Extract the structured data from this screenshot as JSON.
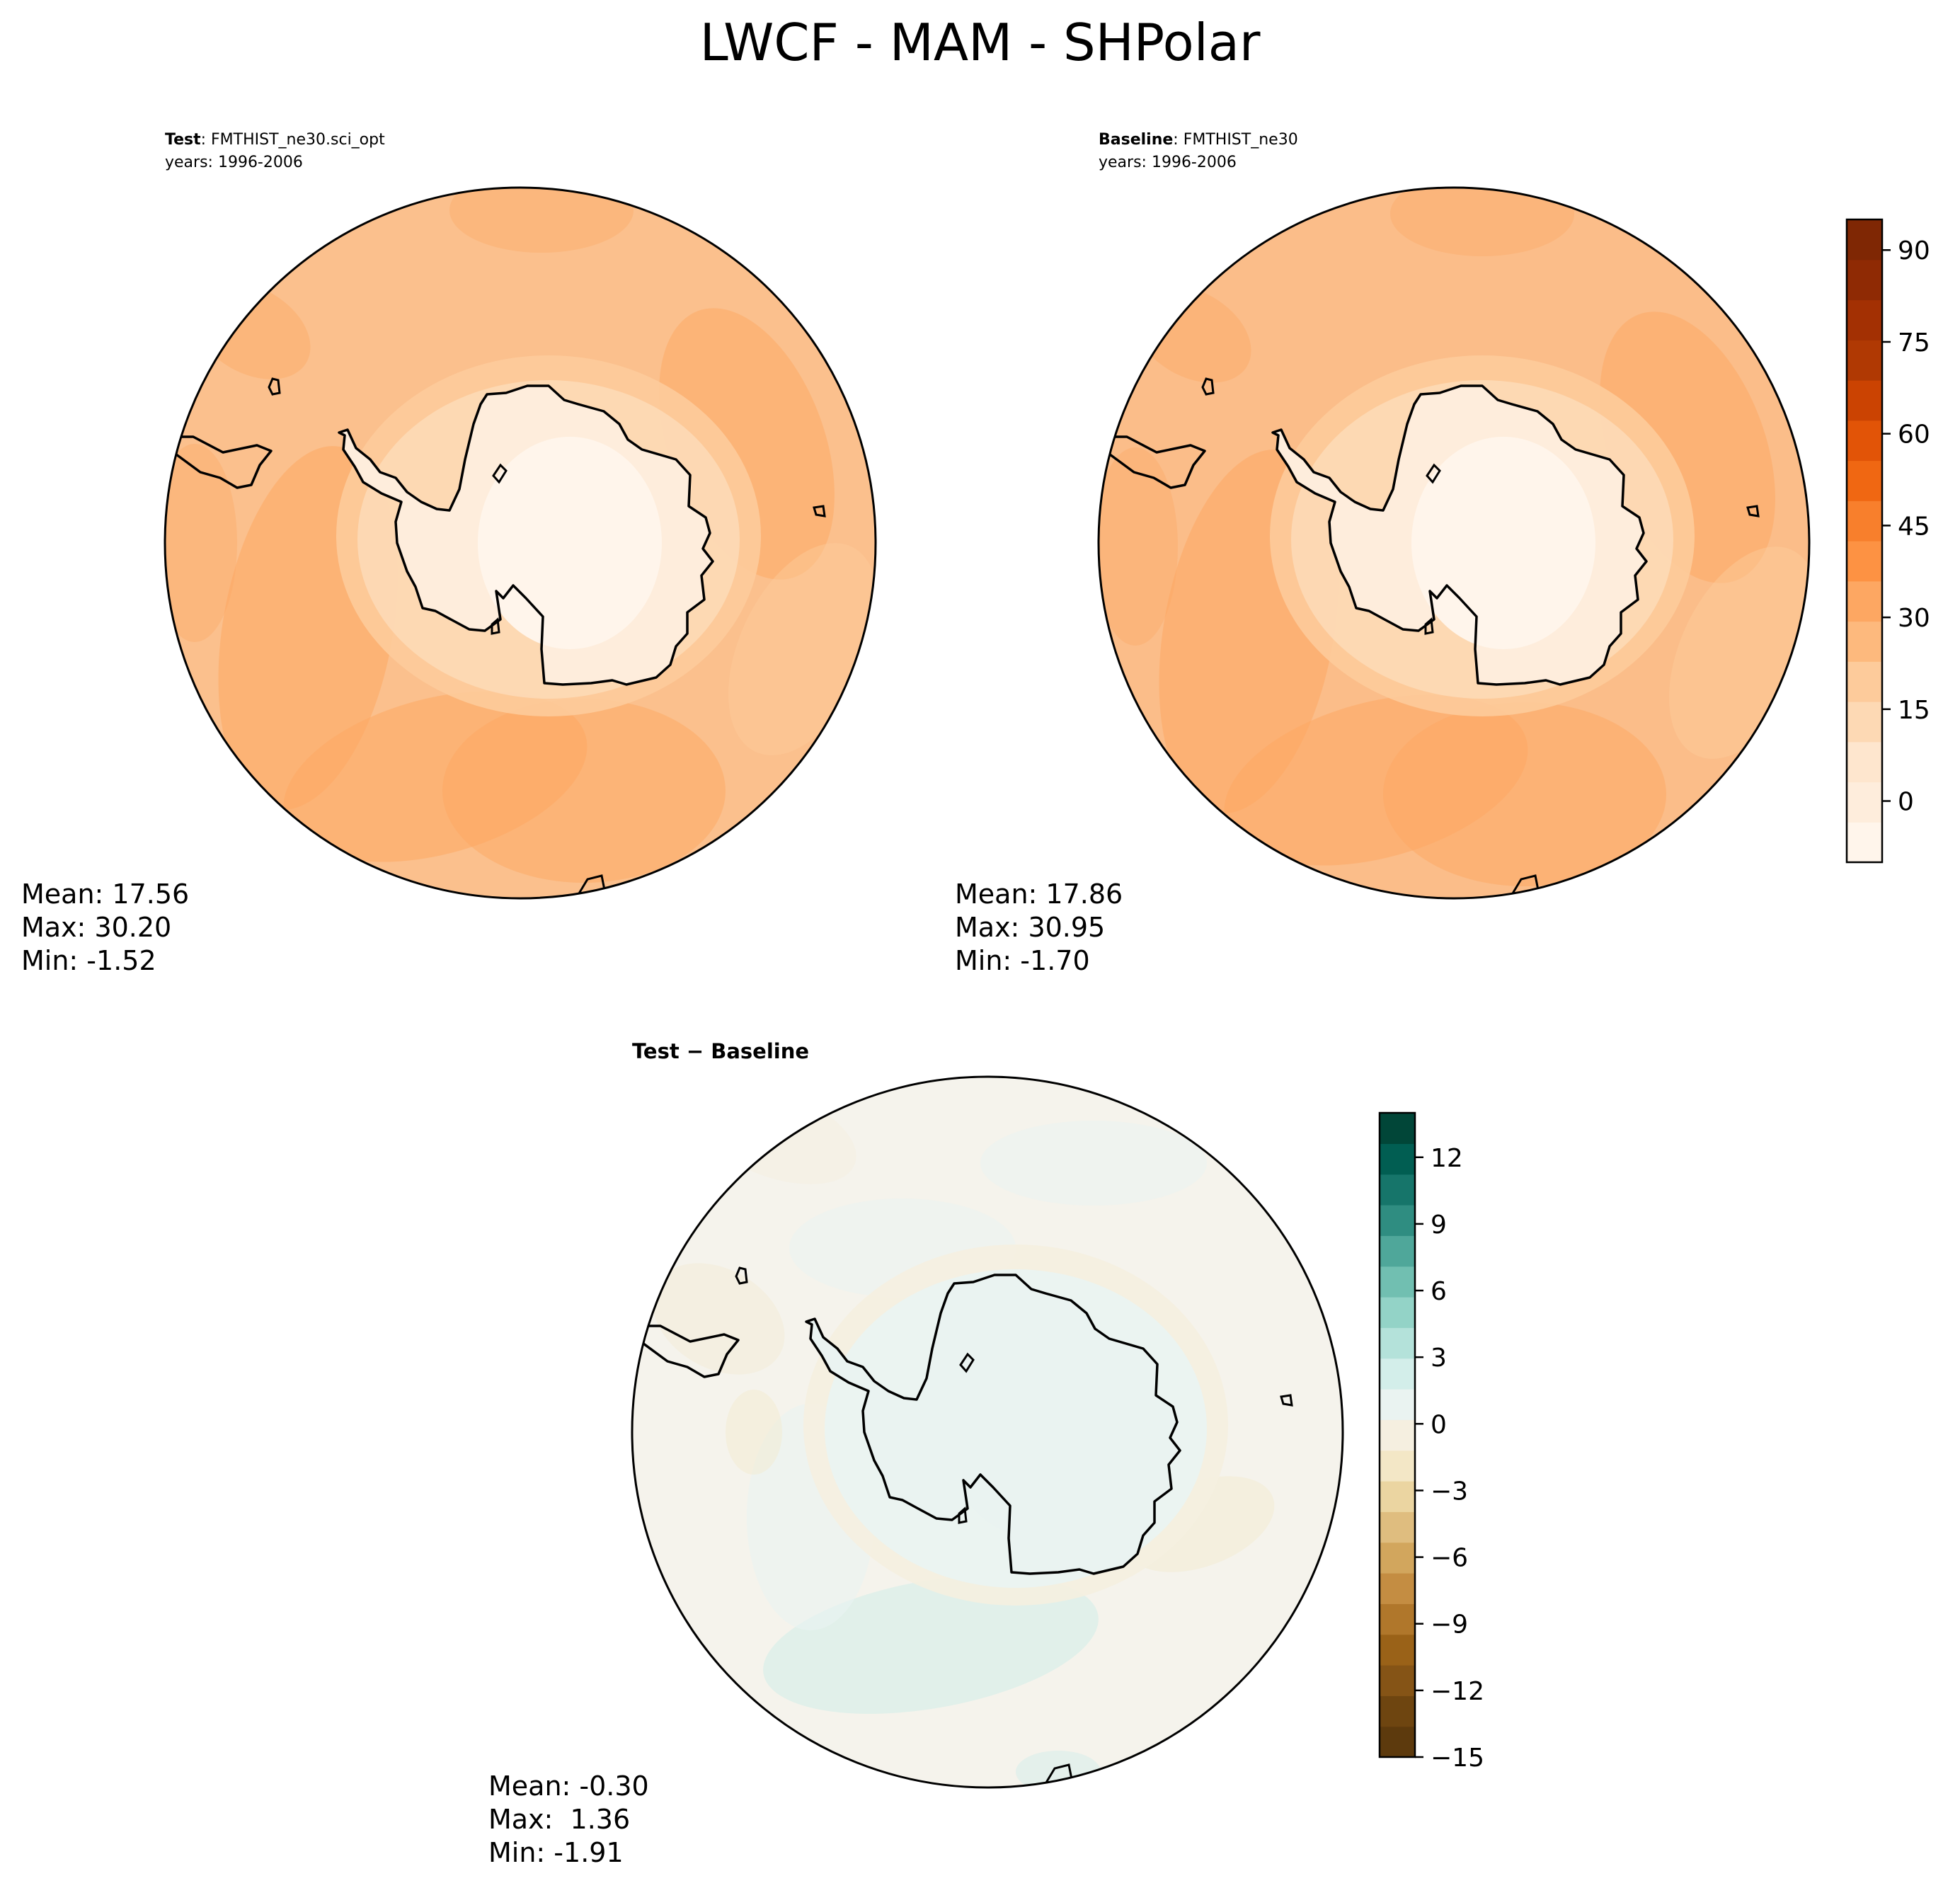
{
  "figure_title": "LWCF - MAM - SHPolar",
  "panels": {
    "test": {
      "label_bold": "Test",
      "case": "FMTHIST_ne30.sci_opt",
      "years": "years: 1996-2006",
      "mean": "Mean: 17.56",
      "max": "Max: 30.20",
      "min": "Min: -1.52"
    },
    "baseline": {
      "label_bold": "Baseline",
      "case": "FMTHIST_ne30",
      "years": "years: 1996-2006",
      "mean": "Mean: 17.86",
      "max": "Max: 30.95",
      "min": "Min: -1.70"
    },
    "diff": {
      "title": "Test − Baseline",
      "mean": "Mean: -0.30",
      "max": "Max:  1.36",
      "min": "Min: -1.91"
    }
  },
  "chart_data": [
    {
      "type": "heatmap",
      "projection": "south polar stereographic",
      "panel": "test",
      "field_stats": {
        "mean": 17.56,
        "max": 30.2,
        "min": -1.52
      },
      "colormap": "Oranges",
      "colorbar_ticks": [
        0,
        15,
        30,
        45,
        60,
        75,
        90
      ],
      "colorbar_range": [
        -10,
        95
      ]
    },
    {
      "type": "heatmap",
      "projection": "south polar stereographic",
      "panel": "baseline",
      "field_stats": {
        "mean": 17.86,
        "max": 30.95,
        "min": -1.7
      },
      "colormap": "Oranges",
      "colorbar_ticks": [
        0,
        15,
        30,
        45,
        60,
        75,
        90
      ],
      "colorbar_tick_labels": [
        "0",
        "15",
        "30",
        "45",
        "60",
        "75",
        "90"
      ],
      "colorbar_range": [
        -10,
        95
      ]
    },
    {
      "type": "heatmap",
      "projection": "south polar stereographic",
      "panel": "diff",
      "field_stats": {
        "mean": -0.3,
        "max": 1.36,
        "min": -1.91
      },
      "colormap": "BrBG",
      "colorbar_ticks": [
        -15,
        -12,
        -9,
        -6,
        -3,
        0,
        3,
        6,
        9,
        12
      ],
      "colorbar_tick_labels": [
        "−15",
        "−12",
        "−9",
        "−6",
        "−3",
        "0",
        "3",
        "6",
        "9",
        "12"
      ],
      "colorbar_range": [
        -15,
        14
      ]
    }
  ],
  "colors": {
    "oranges_levels": [
      "#fff5eb",
      "#feeddc",
      "#fee6ce",
      "#fdd9b4",
      "#fdcb9b",
      "#fdb97d",
      "#fda762",
      "#fd9243",
      "#f87f2c",
      "#f06712",
      "#e25407",
      "#cb4302",
      "#b03903",
      "#a33003",
      "#8f2a04",
      "#7f2704"
    ],
    "brbg_levels": [
      "#5d3a0d",
      "#6e4510",
      "#855416",
      "#9a6218",
      "#b0772b",
      "#c48d42",
      "#d2a65d",
      "#dfbd7f",
      "#ebd5a1",
      "#f3e7c6",
      "#f5efe0",
      "#eaf3f1",
      "#d3eeea",
      "#b4e2da",
      "#93d3c7",
      "#71bfb1",
      "#4fa79a",
      "#2f8d81",
      "#16756a",
      "#015e52",
      "#014638"
    ],
    "test_ocean": "#fbc08d",
    "baseline_ocean": "#fbbd89",
    "diff_ocean": "#f5f3ec"
  }
}
